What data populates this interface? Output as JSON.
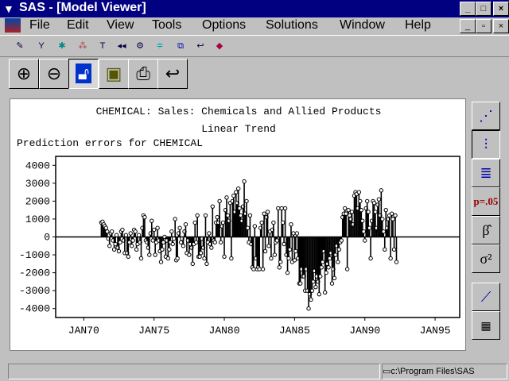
{
  "window": {
    "title": "SAS - [Model Viewer]",
    "controls": [
      "_",
      "□",
      "×"
    ],
    "doc_controls": [
      "_",
      "▫",
      "×"
    ]
  },
  "menu": [
    "File",
    "Edit",
    "View",
    "Tools",
    "Options",
    "Solutions",
    "Window",
    "Help"
  ],
  "toolbar_icons": [
    "edit-icon",
    "fit-model-icon",
    "run-icon",
    "diagnose-icon",
    "tools-icon",
    "rewind-icon",
    "options-icon",
    "align-icon",
    "windows-icon",
    "return-icon",
    "book-icon"
  ],
  "big_buttons": [
    "zoom-in",
    "zoom-out",
    "lock",
    "save",
    "print",
    "undo"
  ],
  "side_buttons": {
    "pvalue": "p=.05",
    "beta": "β̂",
    "sigma": "σ²"
  },
  "status": {
    "path": "c:\\Program Files\\SAS"
  },
  "chart_data": {
    "type": "needle",
    "title": "CHEMICAL: Sales: Chemicals and Allied Products",
    "subtitle": "Linear Trend",
    "ylabel": "Prediction errors for CHEMICAL",
    "ylim": [
      -4500,
      4500
    ],
    "yticks": [
      4000,
      3000,
      2000,
      1000,
      0,
      -1000,
      -2000,
      -3000,
      -4000
    ],
    "xticks": [
      "JAN70",
      "JAN75",
      "JAN80",
      "JAN85",
      "JAN90",
      "JAN95"
    ],
    "xlim": [
      "JAN1968",
      "OCT1996"
    ],
    "start": "APR1971",
    "frequency": "monthly",
    "values": [
      800,
      850,
      700,
      600,
      500,
      300,
      -100,
      -500,
      200,
      300,
      -200,
      -700,
      -400,
      100,
      -600,
      -800,
      -300,
      300,
      400,
      -200,
      -900,
      100,
      -900,
      -1100,
      -300,
      200,
      -500,
      -200,
      400,
      300,
      -700,
      -400,
      100,
      -300,
      -1200,
      500,
      1200,
      1100,
      -200,
      -300,
      -600,
      -1000,
      200,
      900,
      -200,
      400,
      -1000,
      -300,
      500,
      -200,
      -800,
      -1400,
      -700,
      -300,
      0,
      -1100,
      -200,
      -1200,
      -700,
      -300,
      300,
      -400,
      -100,
      1000,
      -1300,
      -1200,
      200,
      500,
      -300,
      -100,
      -500,
      300,
      700,
      -900,
      -200,
      -1000,
      -400,
      -600,
      -1500,
      -400,
      800,
      -300,
      1200,
      -1100,
      -1100,
      -900,
      -100,
      -600,
      -1200,
      1200,
      -1500,
      -300,
      200,
      -400,
      -600,
      1700,
      -200,
      -300,
      800,
      1100,
      800,
      2000,
      -300,
      600,
      800,
      -1100,
      1500,
      2200,
      1200,
      900,
      1900,
      -1200,
      2000,
      2300,
      1400,
      2500,
      1900,
      2700,
      1600,
      1200,
      900,
      1700,
      3100,
      1300,
      2000,
      500,
      -300,
      1200,
      -400,
      -1700,
      -1800,
      600,
      -1200,
      -1800,
      -1700,
      -1800,
      500,
      800,
      -1800,
      1300,
      -800,
      1100,
      1400,
      -500,
      300,
      -1200,
      400,
      800,
      -1000,
      -300,
      -200,
      1600,
      -1700,
      -1400,
      1600,
      800,
      -400,
      1600,
      -1000,
      -2000,
      -1200,
      -700,
      700,
      -1400,
      200,
      -1300,
      -800,
      200,
      -1200,
      -2600,
      -2600,
      -1800,
      -2200,
      -2200,
      -3000,
      -1800,
      -3000,
      -4000,
      -3200,
      -3500,
      -3000,
      -2500,
      -1900,
      -2800,
      -2200,
      -2500,
      -3200,
      -2200,
      -1700,
      -1400,
      -800,
      -3100,
      -2000,
      -1500,
      -1700,
      -1200,
      -900,
      -2600,
      -1800,
      -2300,
      -1000,
      -500,
      -1400,
      -700,
      -300,
      -200,
      1100,
      1300,
      1600,
      1300,
      -1800,
      1500,
      1200,
      1000,
      1400,
      700,
      2300,
      2500,
      2400,
      1600,
      2500,
      2000,
      1500,
      900,
      300,
      -200,
      1600,
      2000,
      1400,
      500,
      -1200,
      900,
      2000,
      1900,
      1400,
      500,
      1800,
      2100,
      1200,
      2600,
      1000,
      300,
      -700,
      1500,
      500,
      1000,
      1200,
      -1200,
      1300,
      1000,
      -700,
      1200,
      -1400
    ]
  }
}
